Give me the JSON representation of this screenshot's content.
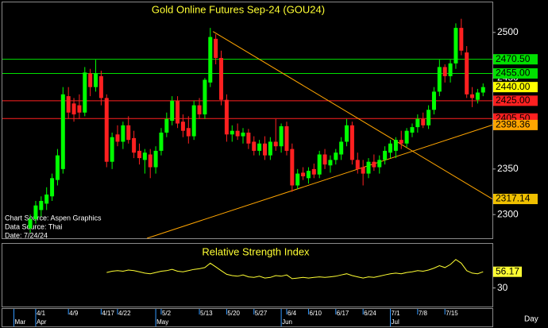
{
  "chart_data": {
    "type": "candlestick",
    "title": "Gold Online Futures Sep-24 (GOU24)",
    "sources": [
      "Chart Source: Aspen Graphics",
      "Data Source: Thai",
      "Date: 7/24/24"
    ],
    "x_unit": "Day",
    "categories": [
      null,
      null,
      null,
      null,
      null,
      "4/1",
      null,
      null,
      null,
      null,
      null,
      "4/9",
      null,
      null,
      null,
      null,
      null,
      "4/17",
      null,
      null,
      "4/22",
      null,
      null,
      null,
      null,
      null,
      null,
      null,
      "5/2",
      null,
      null,
      null,
      null,
      null,
      null,
      "5/13",
      null,
      null,
      null,
      null,
      "5/20",
      null,
      null,
      null,
      null,
      "5/27",
      null,
      null,
      null,
      null,
      null,
      "6/4",
      null,
      null,
      null,
      "6/10",
      null,
      null,
      null,
      null,
      "6/17",
      null,
      null,
      null,
      null,
      "6/24",
      null,
      null,
      null,
      null,
      "7/1",
      null,
      null,
      null,
      null,
      "7/8",
      null,
      null,
      null,
      null,
      "7/15",
      null,
      null,
      null,
      null,
      null,
      null,
      null
    ],
    "months": [
      null,
      "Mar",
      null,
      null,
      null,
      "Apr",
      null,
      null,
      null,
      null,
      null,
      null,
      null,
      null,
      null,
      null,
      null,
      null,
      null,
      null,
      null,
      null,
      null,
      null,
      null,
      null,
      null,
      "May",
      null,
      null,
      null,
      null,
      null,
      null,
      null,
      null,
      null,
      null,
      null,
      null,
      null,
      null,
      null,
      null,
      null,
      null,
      null,
      null,
      null,
      null,
      "Jun",
      null,
      null,
      null,
      null,
      null,
      null,
      null,
      null,
      null,
      null,
      null,
      null,
      null,
      null,
      null,
      null,
      null,
      null,
      null,
      "Jul",
      null,
      null,
      null,
      null,
      null,
      null,
      null,
      null,
      null,
      null,
      null,
      null,
      null,
      null,
      null,
      null,
      null
    ],
    "open": [
      null,
      null,
      null,
      null,
      2285,
      2295,
      2305,
      2312,
      2320,
      2338,
      2350,
      2430,
      2422,
      2420,
      2412,
      2455,
      2440,
      2452,
      2428,
      2358,
      2388,
      2380,
      2398,
      2384,
      2370,
      2360,
      2366,
      2352,
      2370,
      2390,
      2403,
      2425,
      2402,
      2395,
      2386,
      2420,
      2410,
      2445,
      2493,
      2472,
      2426,
      2388,
      2392,
      2386,
      2390,
      2380,
      2370,
      2378,
      2365,
      2380,
      2375,
      2397,
      2372,
      2332,
      2346,
      2340,
      2350,
      2344,
      2366,
      2354,
      2360,
      2366,
      2380,
      2398,
      2360,
      2352,
      2345,
      2358,
      2352,
      2360,
      2368,
      2370,
      2382,
      2378,
      2390,
      2396,
      2405,
      2398,
      2415,
      2435,
      2462,
      2452,
      2466,
      2505,
      2478,
      2432,
      2426,
      2434
    ],
    "high": [
      null,
      null,
      null,
      null,
      2300,
      2315,
      2320,
      2330,
      2345,
      2372,
      2440,
      2440,
      2428,
      2432,
      2462,
      2460,
      2470,
      2458,
      2432,
      2390,
      2398,
      2402,
      2408,
      2392,
      2378,
      2372,
      2372,
      2375,
      2395,
      2412,
      2430,
      2430,
      2410,
      2408,
      2425,
      2428,
      2450,
      2505,
      2498,
      2480,
      2432,
      2398,
      2400,
      2395,
      2394,
      2386,
      2382,
      2386,
      2385,
      2405,
      2400,
      2402,
      2378,
      2350,
      2352,
      2352,
      2356,
      2370,
      2372,
      2365,
      2372,
      2385,
      2405,
      2402,
      2368,
      2360,
      2362,
      2366,
      2365,
      2375,
      2382,
      2385,
      2392,
      2395,
      2400,
      2410,
      2412,
      2420,
      2440,
      2470,
      2465,
      2470,
      2510,
      2515,
      2485,
      2440,
      2438,
      2444
    ],
    "low": [
      null,
      null,
      null,
      null,
      2280,
      2290,
      2298,
      2305,
      2315,
      2332,
      2345,
      2405,
      2402,
      2405,
      2408,
      2430,
      2435,
      2420,
      2352,
      2350,
      2375,
      2372,
      2378,
      2362,
      2355,
      2345,
      2340,
      2345,
      2365,
      2385,
      2398,
      2395,
      2385,
      2378,
      2382,
      2405,
      2405,
      2440,
      2465,
      2420,
      2380,
      2380,
      2382,
      2378,
      2372,
      2365,
      2365,
      2360,
      2360,
      2370,
      2368,
      2365,
      2325,
      2328,
      2338,
      2334,
      2340,
      2340,
      2350,
      2346,
      2355,
      2360,
      2375,
      2355,
      2345,
      2332,
      2340,
      2348,
      2345,
      2355,
      2362,
      2362,
      2372,
      2374,
      2385,
      2390,
      2395,
      2394,
      2410,
      2430,
      2445,
      2445,
      2460,
      2475,
      2428,
      2418,
      2422,
      2430
    ],
    "close": [
      null,
      null,
      null,
      null,
      2295,
      2310,
      2315,
      2322,
      2340,
      2365,
      2432,
      2412,
      2410,
      2412,
      2456,
      2440,
      2455,
      2428,
      2358,
      2385,
      2380,
      2398,
      2382,
      2368,
      2362,
      2368,
      2352,
      2370,
      2390,
      2405,
      2425,
      2400,
      2392,
      2386,
      2420,
      2410,
      2448,
      2495,
      2472,
      2426,
      2388,
      2392,
      2386,
      2390,
      2378,
      2370,
      2378,
      2365,
      2380,
      2375,
      2397,
      2370,
      2332,
      2345,
      2342,
      2348,
      2344,
      2366,
      2355,
      2360,
      2368,
      2380,
      2398,
      2360,
      2350,
      2345,
      2358,
      2352,
      2360,
      2370,
      2378,
      2382,
      2378,
      2392,
      2396,
      2405,
      2398,
      2415,
      2435,
      2462,
      2452,
      2466,
      2505,
      2480,
      2432,
      2428,
      2434,
      2440
    ],
    "up_color": "#00ff00",
    "down_color": "#ff2020",
    "ylim": [
      2274,
      2533
    ],
    "yticks": [
      2300,
      2350,
      2400,
      2450,
      2500
    ],
    "levels": [
      {
        "value": 2470.5,
        "label": "2470.50",
        "color": "#00e000"
      },
      {
        "value": 2455,
        "label": "2455.00",
        "color": "#00e000"
      },
      {
        "value": 2425,
        "label": "2425.00",
        "color": "#ff2020"
      },
      {
        "value": 2405.5,
        "label": "2405.50",
        "color": "#ff2020"
      }
    ],
    "last_price": {
      "value": 2440,
      "label": "2440.00",
      "color": "#ffff00"
    },
    "trendlines": [
      {
        "x": [
          37.5,
          88.7
        ],
        "y": [
          2501,
          {
            "value": 2317.14,
            "label": "2317.14"
          }
        ],
        "color": "#ffa500",
        "label_color": "#f0c000"
      },
      {
        "x": [
          25.4,
          88.7
        ],
        "y": [
          2274,
          {
            "value": 2398.36,
            "label": "2398.36"
          }
        ],
        "color": "#ffa500",
        "label_color": "#ffa500"
      }
    ],
    "rsi": {
      "title": "Relative Strength Index",
      "color": "#ffff33",
      "ylim": [
        0,
        100
      ],
      "yticks": [
        30
      ],
      "values": [
        null,
        null,
        null,
        null,
        null,
        null,
        null,
        null,
        null,
        null,
        null,
        null,
        null,
        null,
        null,
        null,
        null,
        null,
        55,
        57,
        58,
        57,
        59,
        58,
        56,
        54,
        53,
        55,
        57,
        58,
        60,
        57,
        56,
        58,
        60,
        61,
        63,
        70,
        64,
        58,
        52,
        50,
        49,
        51,
        48,
        47,
        49,
        46,
        47,
        50,
        49,
        51,
        45,
        46,
        47,
        46,
        47,
        48,
        47,
        48,
        49,
        51,
        53,
        50,
        48,
        46,
        48,
        47,
        49,
        51,
        53,
        54,
        53,
        55,
        56,
        58,
        57,
        59,
        62,
        66,
        63,
        68,
        76,
        70,
        58,
        54,
        53,
        56.17
      ]
    }
  }
}
